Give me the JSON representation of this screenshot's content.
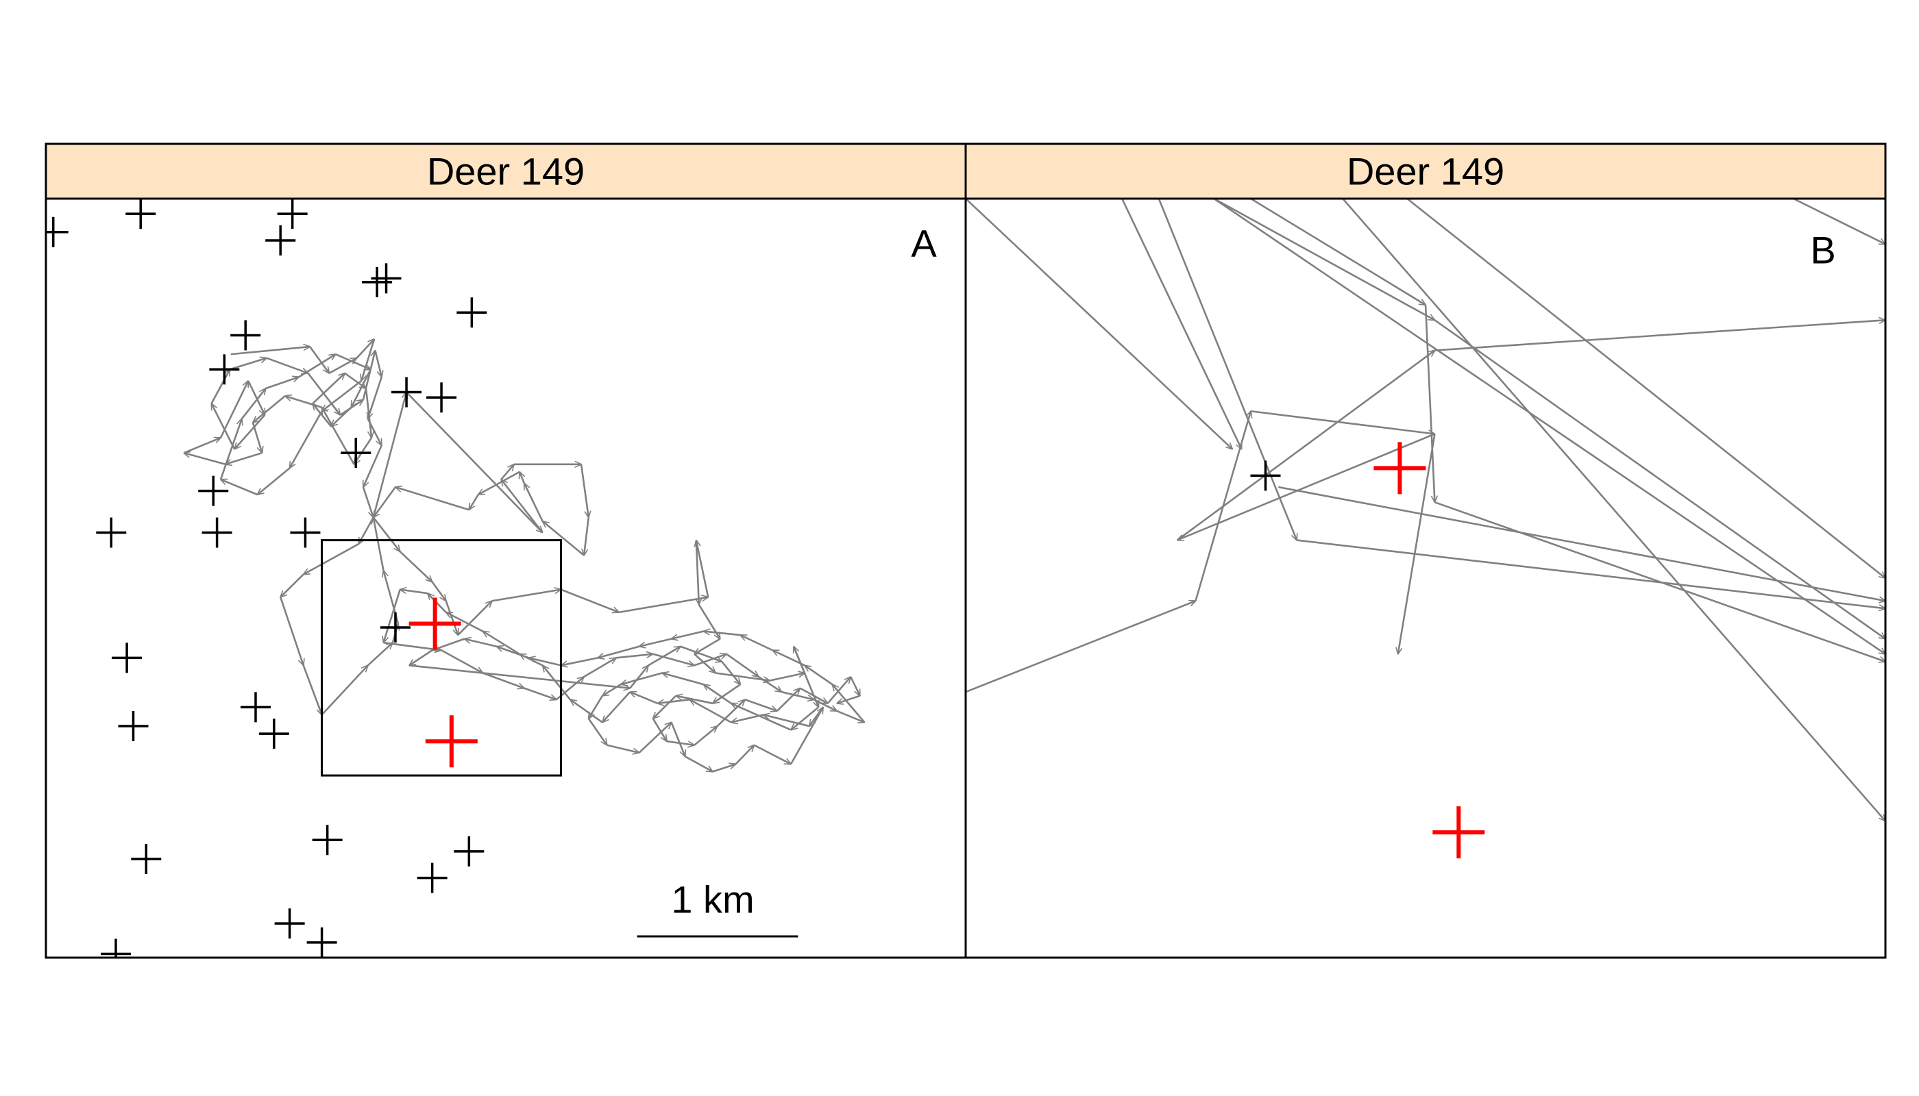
{
  "figure": {
    "panels": [
      {
        "strip_title": "Deer 149",
        "letter": "A",
        "scale_label": "1 km"
      },
      {
        "strip_title": "Deer 149",
        "letter": "B"
      }
    ],
    "colors": {
      "strip": "#ffe4c4",
      "path": "#808080",
      "other_points": "#000000",
      "focal_points": "#ff0000"
    }
  },
  "chart_data": [
    {
      "type": "scatter",
      "title": "Deer 149",
      "panel_letter": "A",
      "xlim": [
        0,
        100
      ],
      "ylim": [
        0,
        100
      ],
      "scale_bar": {
        "label": "1 km",
        "length": 17.5
      },
      "zoom_box": {
        "x0": 30,
        "x1": 56,
        "y0": 24,
        "y1": 55
      },
      "other_points": [
        [
          0.8,
          95.6
        ],
        [
          10.3,
          98.0
        ],
        [
          26.8,
          98.0
        ],
        [
          25.5,
          94.5
        ],
        [
          36.0,
          89.0
        ],
        [
          37.0,
          89.5
        ],
        [
          46.3,
          85.0
        ],
        [
          21.7,
          82.0
        ],
        [
          19.4,
          77.5
        ],
        [
          39.2,
          74.5
        ],
        [
          43.0,
          73.8
        ],
        [
          33.7,
          66.5
        ],
        [
          18.2,
          61.5
        ],
        [
          7.1,
          56.0
        ],
        [
          18.6,
          56.0
        ],
        [
          28.2,
          56.0
        ],
        [
          38.0,
          43.5
        ],
        [
          8.8,
          39.5
        ],
        [
          22.8,
          33.0
        ],
        [
          9.5,
          30.5
        ],
        [
          24.8,
          29.5
        ],
        [
          30.6,
          15.5
        ],
        [
          10.9,
          13.0
        ],
        [
          46.0,
          14.0
        ],
        [
          42.0,
          10.5
        ],
        [
          26.5,
          4.5
        ],
        [
          30.0,
          2.0
        ],
        [
          7.6,
          0.5
        ]
      ],
      "focal_points": [
        [
          42.3,
          44.0
        ],
        [
          44.1,
          28.5
        ]
      ],
      "path_points": [
        [
          20.1,
          79.5
        ],
        [
          28.7,
          80.5
        ],
        [
          30.8,
          77.0
        ],
        [
          33.8,
          79.0
        ],
        [
          35.7,
          81.5
        ],
        [
          34.3,
          76.0
        ],
        [
          30.0,
          72.0
        ],
        [
          26.5,
          64.5
        ],
        [
          23.0,
          61.0
        ],
        [
          19.0,
          63.0
        ],
        [
          21.3,
          71.0
        ],
        [
          23.9,
          75.0
        ],
        [
          27.5,
          76.5
        ],
        [
          31.5,
          79.5
        ],
        [
          35.3,
          77.5
        ],
        [
          33.2,
          72.5
        ],
        [
          31.0,
          70.0
        ],
        [
          29.0,
          73.0
        ],
        [
          32.5,
          77.0
        ],
        [
          34.8,
          75.0
        ],
        [
          35.4,
          68.5
        ],
        [
          33.5,
          65.0
        ],
        [
          30.0,
          72.5
        ],
        [
          26.0,
          74.0
        ],
        [
          22.5,
          70.5
        ],
        [
          23.5,
          66.5
        ],
        [
          19.5,
          65.0
        ],
        [
          15.0,
          66.5
        ],
        [
          19.0,
          68.5
        ],
        [
          22.0,
          76.0
        ],
        [
          23.8,
          71.5
        ],
        [
          20.5,
          67.0
        ],
        [
          18.0,
          73.0
        ],
        [
          20.0,
          77.5
        ],
        [
          24.0,
          79.0
        ],
        [
          28.5,
          77.0
        ],
        [
          32.0,
          71.5
        ],
        [
          34.5,
          73.5
        ],
        [
          35.8,
          80.0
        ],
        [
          36.5,
          76.5
        ],
        [
          35.0,
          71.0
        ],
        [
          36.5,
          67.5
        ],
        [
          34.5,
          62.0
        ],
        [
          35.6,
          58.0
        ],
        [
          39.2,
          74.5
        ],
        [
          54.0,
          56.0
        ],
        [
          49.5,
          63.0
        ],
        [
          50.9,
          65.0
        ],
        [
          58.2,
          65.0
        ],
        [
          59.0,
          58.0
        ],
        [
          58.5,
          53.0
        ],
        [
          54.0,
          57.5
        ],
        [
          52.0,
          62.5
        ],
        [
          51.5,
          64.0
        ],
        [
          47.0,
          61.0
        ],
        [
          46.0,
          59.0
        ],
        [
          38.0,
          62.0
        ],
        [
          35.6,
          58.0
        ],
        [
          34.0,
          54.5
        ],
        [
          28.0,
          50.5
        ],
        [
          25.5,
          47.5
        ],
        [
          28.0,
          38.5
        ],
        [
          30.0,
          32.0
        ],
        [
          35.0,
          38.5
        ],
        [
          37.7,
          41.5
        ],
        [
          38.3,
          44.0
        ],
        [
          36.7,
          51.0
        ],
        [
          35.6,
          58.0
        ],
        [
          38.5,
          53.5
        ],
        [
          42.0,
          49.5
        ],
        [
          43.5,
          47.0
        ],
        [
          44.8,
          42.5
        ],
        [
          48.5,
          47.0
        ],
        [
          56.0,
          48.5
        ],
        [
          62.3,
          45.5
        ],
        [
          72.0,
          47.5
        ],
        [
          70.7,
          55.0
        ],
        [
          71.0,
          46.5
        ],
        [
          73.3,
          42.0
        ],
        [
          70.5,
          40.0
        ],
        [
          72.8,
          37.5
        ],
        [
          78.7,
          36.5
        ],
        [
          82.5,
          37.5
        ],
        [
          81.3,
          41.0
        ],
        [
          84.0,
          33.0
        ],
        [
          81.0,
          30.0
        ],
        [
          74.5,
          33.5
        ],
        [
          71.5,
          36.0
        ],
        [
          67.0,
          37.5
        ],
        [
          62.5,
          36.0
        ],
        [
          60.5,
          34.5
        ],
        [
          59.0,
          31.5
        ],
        [
          61.0,
          28.0
        ],
        [
          64.5,
          27.0
        ],
        [
          68.0,
          31.0
        ],
        [
          69.5,
          26.5
        ],
        [
          72.5,
          24.5
        ],
        [
          75.0,
          25.5
        ],
        [
          77.0,
          28.0
        ],
        [
          81.0,
          25.5
        ],
        [
          84.5,
          33.0
        ],
        [
          83.0,
          30.5
        ],
        [
          78.0,
          32.0
        ],
        [
          74.5,
          31.0
        ],
        [
          70.0,
          34.0
        ],
        [
          66.5,
          33.5
        ],
        [
          63.5,
          35.0
        ],
        [
          60.5,
          31.0
        ],
        [
          57.0,
          34.0
        ],
        [
          54.0,
          38.5
        ],
        [
          51.5,
          40.0
        ],
        [
          47.5,
          43.0
        ],
        [
          43.5,
          45.5
        ],
        [
          41.5,
          48.0
        ],
        [
          38.5,
          48.5
        ],
        [
          36.7,
          41.5
        ],
        [
          43.0,
          40.5
        ],
        [
          47.5,
          37.5
        ],
        [
          52.0,
          35.5
        ],
        [
          55.5,
          34.0
        ],
        [
          58.5,
          37.0
        ],
        [
          62.0,
          39.5
        ],
        [
          66.0,
          40.0
        ],
        [
          70.5,
          38.5
        ],
        [
          74.0,
          40.0
        ],
        [
          77.5,
          37.0
        ],
        [
          80.0,
          35.0
        ],
        [
          83.5,
          34.0
        ],
        [
          86.0,
          32.5
        ],
        [
          89.0,
          31.0
        ],
        [
          85.5,
          36.0
        ],
        [
          82.5,
          38.5
        ],
        [
          79.0,
          40.5
        ],
        [
          75.5,
          42.5
        ],
        [
          71.5,
          43.0
        ],
        [
          68.0,
          42.0
        ],
        [
          64.5,
          41.0
        ],
        [
          60.0,
          39.5
        ],
        [
          56.0,
          38.5
        ],
        [
          52.5,
          39.5
        ],
        [
          49.0,
          41.0
        ],
        [
          45.5,
          42.0
        ],
        [
          42.0,
          40.5
        ],
        [
          39.5,
          38.5
        ],
        [
          63.5,
          35.5
        ],
        [
          65.5,
          38.5
        ],
        [
          69.0,
          41.0
        ],
        [
          73.5,
          39.0
        ],
        [
          75.5,
          36.0
        ],
        [
          72.5,
          33.5
        ],
        [
          68.5,
          34.5
        ],
        [
          66.0,
          31.5
        ],
        [
          67.5,
          28.5
        ],
        [
          70.5,
          28.0
        ],
        [
          73.0,
          30.5
        ],
        [
          76.0,
          34.0
        ],
        [
          79.5,
          32.5
        ],
        [
          82.0,
          35.5
        ],
        [
          85.0,
          33.5
        ],
        [
          87.5,
          37.0
        ],
        [
          88.5,
          34.5
        ],
        [
          86.0,
          33.5
        ]
      ]
    },
    {
      "type": "scatter",
      "title": "Deer 149",
      "panel_letter": "B",
      "xlim": [
        0,
        100
      ],
      "ylim": [
        0,
        100
      ],
      "other_points": [
        [
          32.6,
          63.5
        ]
      ],
      "focal_points": [
        [
          47.2,
          64.5
        ],
        [
          53.6,
          16.5
        ]
      ],
      "path_segments": [
        [
          [
            0,
            35
          ],
          [
            25,
            47
          ]
        ],
        [
          [
            25,
            47
          ],
          [
            31,
            72
          ]
        ],
        [
          [
            31,
            72
          ],
          [
            51,
            69
          ]
        ],
        [
          [
            51,
            69
          ],
          [
            47,
            40
          ]
        ],
        [
          [
            51,
            69
          ],
          [
            23,
            55
          ]
        ],
        [
          [
            23,
            55
          ],
          [
            51,
            80
          ]
        ],
        [
          [
            51,
            80
          ],
          [
            100,
            84
          ]
        ],
        [
          [
            0,
            100
          ],
          [
            29,
            67
          ]
        ],
        [
          [
            17,
            100
          ],
          [
            30,
            67
          ]
        ],
        [
          [
            21,
            100
          ],
          [
            36,
            55
          ]
        ],
        [
          [
            36,
            55
          ],
          [
            100,
            46
          ]
        ],
        [
          [
            31,
            100
          ],
          [
            50,
            86
          ]
        ],
        [
          [
            50,
            86
          ],
          [
            51,
            60
          ]
        ],
        [
          [
            51,
            60
          ],
          [
            100,
            39
          ]
        ],
        [
          [
            27,
            100
          ],
          [
            51,
            84
          ]
        ],
        [
          [
            51,
            84
          ],
          [
            100,
            42
          ]
        ],
        [
          [
            41,
            100
          ],
          [
            100,
            18
          ]
        ],
        [
          [
            48,
            100
          ],
          [
            100,
            50
          ]
        ],
        [
          [
            90,
            100
          ],
          [
            100,
            94
          ]
        ],
        [
          [
            27,
            100
          ],
          [
            100,
            40
          ]
        ],
        [
          [
            34,
            62
          ],
          [
            100,
            47
          ]
        ]
      ]
    }
  ]
}
